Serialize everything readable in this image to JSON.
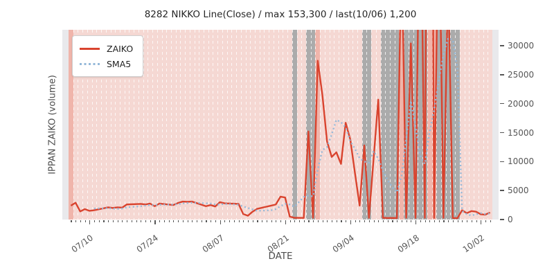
{
  "title": "8282 NIKKO Line(Close) / max 153,300 / last(10/06) 1,200",
  "stats": {
    "symbol": "8282",
    "name": "NIKKO",
    "max": "153,300",
    "last_date": "10/06",
    "last_value": "1,200"
  },
  "legend": {
    "items": [
      {
        "label": "ZAIKO",
        "style": "solid"
      },
      {
        "label": "SMA5",
        "style": "dotted"
      }
    ]
  },
  "chart_data": {
    "type": "line",
    "title": "8282 NIKKO Line(Close) / max 153,300 / last(10/06) 1,200",
    "xlabel": "DATE",
    "ylabel": "IPPAN ZAIKO (volume)",
    "x_axis": {
      "total_days": 91,
      "tick_days": [
        4,
        18,
        32,
        46,
        60,
        74,
        88
      ],
      "tick_labels": [
        "07/10",
        "07/24",
        "08/07",
        "08/21",
        "09/04",
        "09/18",
        "10/02"
      ]
    },
    "y_axis": {
      "ticks": [
        0,
        5000,
        10000,
        15000,
        20000,
        25000,
        30000
      ],
      "display_max": 32750,
      "note": "values above axis top are clipped; true series max 153,300"
    },
    "series": [
      {
        "name": "ZAIKO",
        "color": "#d9432e",
        "style": "solid",
        "points": [
          [
            0,
            2400
          ],
          [
            1,
            2900
          ],
          [
            2,
            1400
          ],
          [
            3,
            1800
          ],
          [
            4,
            1500
          ],
          [
            5,
            1600
          ],
          [
            8,
            2100
          ],
          [
            9,
            2000
          ],
          [
            10,
            2100
          ],
          [
            11,
            2050
          ],
          [
            12,
            2600
          ],
          [
            15,
            2700
          ],
          [
            16,
            2600
          ],
          [
            17,
            2750
          ],
          [
            18,
            2300
          ],
          [
            19,
            2750
          ],
          [
            22,
            2500
          ],
          [
            23,
            2850
          ],
          [
            24,
            3100
          ],
          [
            25,
            3050
          ],
          [
            26,
            3100
          ],
          [
            29,
            2300
          ],
          [
            30,
            2500
          ],
          [
            31,
            2250
          ],
          [
            32,
            3000
          ],
          [
            33,
            2800
          ],
          [
            36,
            2700
          ],
          [
            37,
            950
          ],
          [
            38,
            650
          ],
          [
            39,
            1350
          ],
          [
            40,
            1850
          ],
          [
            43,
            2400
          ],
          [
            44,
            2600
          ],
          [
            45,
            3950
          ],
          [
            46,
            3800
          ],
          [
            47,
            500
          ],
          [
            48,
            300
          ],
          [
            50,
            280
          ],
          [
            51,
            15200
          ],
          [
            52,
            300
          ],
          [
            53,
            27400
          ],
          [
            54,
            21500
          ],
          [
            55,
            13500
          ],
          [
            56,
            10800
          ],
          [
            57,
            11600
          ],
          [
            58,
            9600
          ],
          [
            59,
            16700
          ],
          [
            60,
            13800
          ],
          [
            61,
            8000
          ],
          [
            62,
            2400
          ],
          [
            63,
            12800
          ],
          [
            64,
            300
          ],
          [
            66,
            20700
          ],
          [
            67,
            300
          ],
          [
            68,
            260
          ],
          [
            69,
            280
          ],
          [
            70,
            250
          ],
          [
            71,
            48000
          ],
          [
            72,
            300
          ],
          [
            73,
            30400
          ],
          [
            74,
            280
          ],
          [
            75,
            64000
          ],
          [
            76,
            300
          ],
          [
            77,
            153300
          ],
          [
            78,
            280
          ],
          [
            79,
            58000
          ],
          [
            80,
            300
          ],
          [
            81,
            42000
          ],
          [
            82,
            260
          ],
          [
            83,
            230
          ],
          [
            84,
            1600
          ],
          [
            85,
            1100
          ],
          [
            86,
            1450
          ],
          [
            87,
            1350
          ],
          [
            88,
            900
          ],
          [
            89,
            850
          ],
          [
            90,
            1200
          ]
        ]
      },
      {
        "name": "SMA5",
        "color": "#95b9d9",
        "style": "dotted",
        "points": [
          [
            5,
            1900
          ],
          [
            8,
            1950
          ],
          [
            9,
            1900
          ],
          [
            10,
            1850
          ],
          [
            11,
            1900
          ],
          [
            12,
            2100
          ],
          [
            15,
            2300
          ],
          [
            16,
            2400
          ],
          [
            17,
            2500
          ],
          [
            18,
            2500
          ],
          [
            19,
            2550
          ],
          [
            22,
            2600
          ],
          [
            23,
            2650
          ],
          [
            24,
            2800
          ],
          [
            25,
            2850
          ],
          [
            26,
            2900
          ],
          [
            29,
            2800
          ],
          [
            30,
            2750
          ],
          [
            31,
            2600
          ],
          [
            32,
            2600
          ],
          [
            33,
            2700
          ],
          [
            36,
            2550
          ],
          [
            37,
            2250
          ],
          [
            38,
            2000
          ],
          [
            39,
            1750
          ],
          [
            40,
            1500
          ],
          [
            43,
            1600
          ],
          [
            44,
            1800
          ],
          [
            45,
            2300
          ],
          [
            46,
            2700
          ],
          [
            47,
            2600
          ],
          [
            48,
            2200
          ],
          [
            50,
            3900
          ],
          [
            51,
            4100
          ],
          [
            52,
            4000
          ],
          [
            53,
            8600
          ],
          [
            54,
            12000
          ],
          [
            55,
            12500
          ],
          [
            56,
            14700
          ],
          [
            57,
            17200
          ],
          [
            58,
            16800
          ],
          [
            59,
            15900
          ],
          [
            60,
            13500
          ],
          [
            61,
            12200
          ],
          [
            62,
            10600
          ],
          [
            63,
            10000
          ],
          [
            64,
            9800
          ],
          [
            65,
            11800
          ],
          [
            66,
            10500
          ],
          [
            67,
            8400
          ],
          [
            68,
            6800
          ],
          [
            69,
            5600
          ],
          [
            70,
            4700
          ],
          [
            71,
            7500
          ],
          [
            72,
            14000
          ],
          [
            73,
            20500
          ],
          [
            74,
            16000
          ],
          [
            75,
            11000
          ],
          [
            76,
            9600
          ],
          [
            77,
            15000
          ],
          [
            78,
            19000
          ],
          [
            79,
            24000
          ],
          [
            80,
            28500
          ],
          [
            81,
            31300
          ],
          [
            82,
            31000
          ],
          [
            83,
            26000
          ],
          [
            84,
            1500
          ],
          [
            85,
            900
          ],
          [
            86,
            700
          ],
          [
            87,
            900
          ],
          [
            88,
            1100
          ],
          [
            89,
            950
          ],
          [
            90,
            1050
          ]
        ]
      }
    ],
    "background_bands": {
      "default_color": "#f5d8d3",
      "dark_color": "#f0b5ab",
      "gray_color": "#ababab",
      "gray_days": [
        48,
        51,
        52,
        63,
        64,
        67,
        68,
        69,
        70,
        72,
        73,
        74,
        75,
        76,
        79,
        80,
        81,
        82,
        83
      ],
      "dark_days": [
        0,
        53,
        71,
        77,
        78
      ]
    }
  }
}
